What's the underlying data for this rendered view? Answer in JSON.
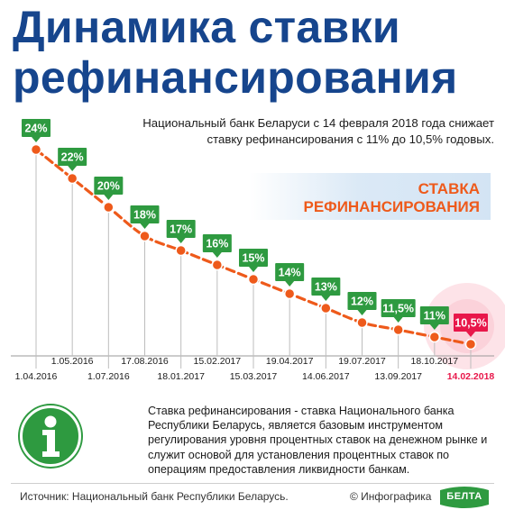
{
  "header": {
    "title_line1": "Динамика ставки",
    "title_line2": "рефинансирования",
    "subtitle": "Национальный банк Беларуси с 14 февраля 2018 года снижает ставку рефинансирования с 11% до 10,5% годовых."
  },
  "banner": {
    "line1": "СТАВКА",
    "line2": "РЕФИНАНСИРОВАНИЯ"
  },
  "colors": {
    "title": "#16458d",
    "accent_orange": "#ee5a1b",
    "label_green": "#2e9a40",
    "label_red": "#e8174a",
    "current_date": "#e8174a"
  },
  "chart_data": {
    "type": "line",
    "x": [
      "1.04.2016",
      "1.05.2016",
      "1.07.2016",
      "17.08.2016",
      "18.01.2017",
      "15.02.2017",
      "15.03.2017",
      "19.04.2017",
      "14.06.2017",
      "19.07.2017",
      "13.09.2017",
      "18.10.2017",
      "14.02.2018"
    ],
    "values": [
      24,
      22,
      20,
      18,
      17,
      16,
      15,
      14,
      13,
      12,
      11.5,
      11,
      10.5
    ],
    "value_labels": [
      "24%",
      "22%",
      "20%",
      "18%",
      "17%",
      "16%",
      "15%",
      "14%",
      "13%",
      "12%",
      "11,5%",
      "11%",
      "10,5%"
    ],
    "highlight_index": 12,
    "line_style": "dashed",
    "grid": false
  },
  "info": {
    "icon": "info-icon",
    "text": "Ставка рефинансирования - ставка Национального банка Республики Беларусь, является базовым инструментом регулирования уровня процентных ставок на денежном рынке и служит основой для установления процентных ставок по операциям предоставления ликвидности банкам."
  },
  "footer": {
    "source": "Источник: Национальный банк Республики Беларусь.",
    "credit": "© Инфографика",
    "logo_text": "БЕЛТА"
  }
}
